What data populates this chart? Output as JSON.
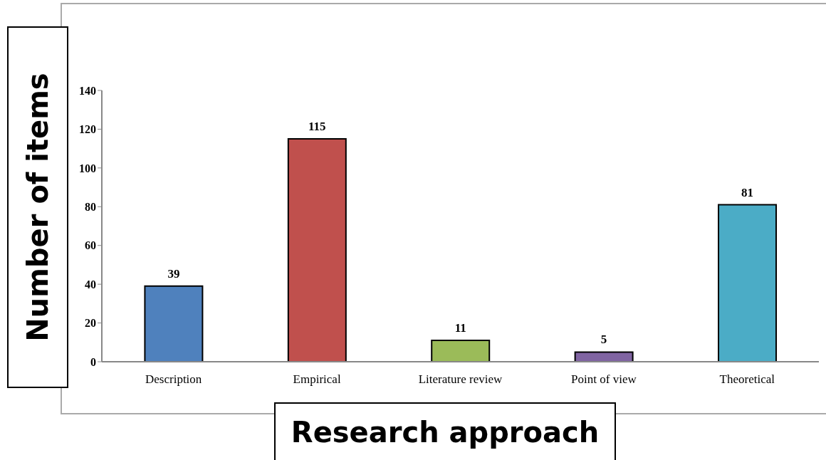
{
  "chart_data": {
    "type": "bar",
    "xlabel": "Research approach",
    "ylabel": "Number of items",
    "categories": [
      "Description",
      "Empirical",
      "Literature review",
      "Point of view",
      "Theoretical"
    ],
    "values": [
      39,
      115,
      11,
      5,
      81
    ],
    "colors": [
      "#4f81bd",
      "#c0504d",
      "#9bbb59",
      "#8064a2",
      "#4bacc6"
    ],
    "ylim": [
      0,
      140
    ],
    "yticks": [
      0,
      20,
      40,
      60,
      80,
      100,
      120,
      140
    ],
    "data_labels": true,
    "grid": false
  }
}
